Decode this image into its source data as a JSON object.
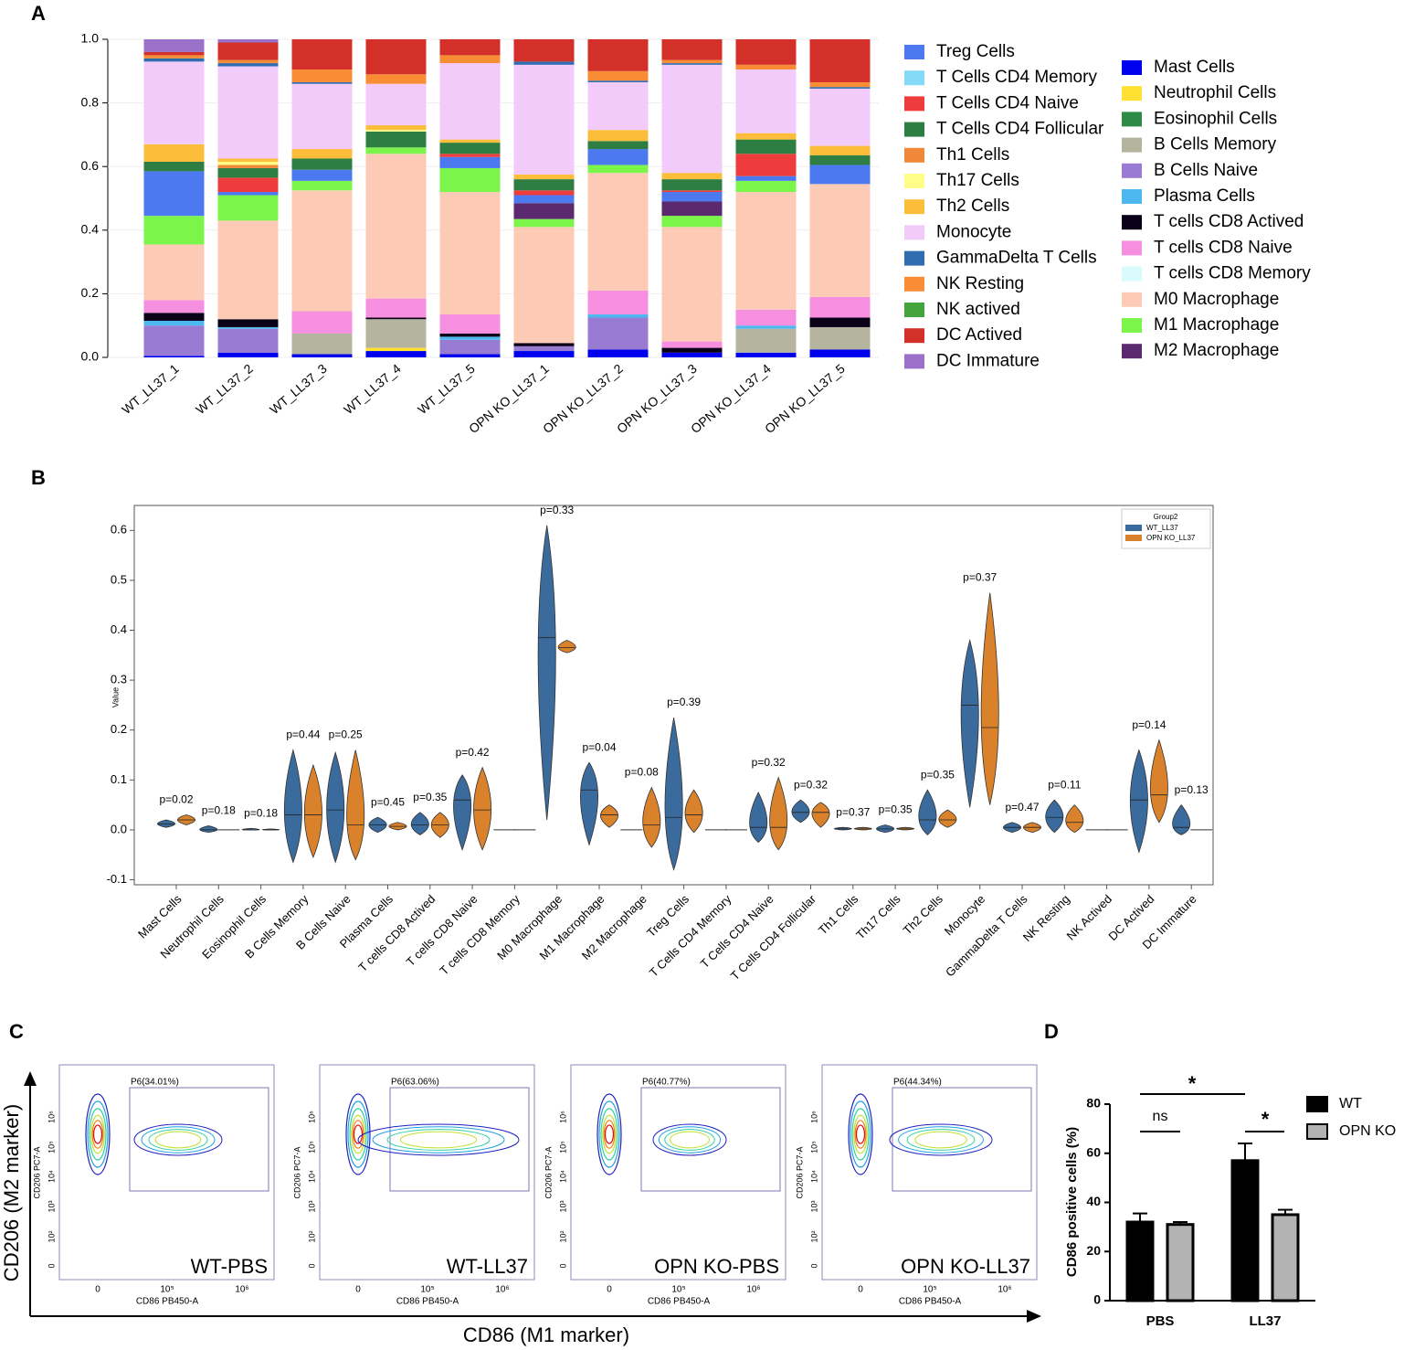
{
  "panel_labels": [
    "A",
    "B",
    "C",
    "D"
  ],
  "chart_data": [
    {
      "type": "stacked_bar",
      "categories": [
        "WT_LL37_1",
        "WT_LL37_2",
        "WT_LL37_3",
        "WT_LL37_4",
        "WT_LL37_5",
        "OPN KO_LL37_1",
        "OPN KO_LL37_2",
        "OPN KO_LL37_3",
        "OPN KO_LL37_4",
        "OPN KO_LL37_5"
      ],
      "series": [
        {
          "name": "Mast Cells",
          "color": "#0000ee",
          "values": [
            0.005,
            0.015,
            0.01,
            0.02,
            0.01,
            0.02,
            0.025,
            0.015,
            0.015,
            0.025
          ]
        },
        {
          "name": "Neutrophil Cells",
          "color": "#ffe033",
          "values": [
            0,
            0,
            0,
            0.01,
            0,
            0,
            0,
            0,
            0,
            0
          ]
        },
        {
          "name": "Eosinophil Cells",
          "color": "#2e8b47",
          "values": [
            0,
            0,
            0,
            0,
            0,
            0,
            0,
            0,
            0,
            0
          ]
        },
        {
          "name": "B Cells Memory",
          "color": "#b5b59f",
          "values": [
            0,
            0,
            0.065,
            0.09,
            0,
            0,
            0,
            0,
            0.075,
            0.07
          ]
        },
        {
          "name": "B Cells Naive",
          "color": "#9a7bd4",
          "values": [
            0.095,
            0.075,
            0,
            0,
            0.045,
            0.015,
            0.1,
            0,
            0,
            0
          ]
        },
        {
          "name": "Plasma Cells",
          "color": "#4db8f0",
          "values": [
            0.015,
            0.005,
            0,
            0,
            0.01,
            0,
            0.01,
            0,
            0.01,
            0
          ]
        },
        {
          "name": "T cells CD8 Actived",
          "color": "#0a0018",
          "values": [
            0.025,
            0.025,
            0,
            0.005,
            0.01,
            0.01,
            0,
            0.015,
            0,
            0.03
          ]
        },
        {
          "name": "T cells CD8 Naive",
          "color": "#f78fe0",
          "values": [
            0.04,
            0,
            0.07,
            0.06,
            0.06,
            0,
            0.075,
            0.02,
            0.05,
            0.065
          ]
        },
        {
          "name": "T cells CD8 Memory",
          "color": "#d9fbfb",
          "values": [
            0,
            0,
            0,
            0,
            0,
            0,
            0,
            0,
            0,
            0
          ]
        },
        {
          "name": "M0 Macrophage",
          "color": "#fdcab6",
          "values": [
            0.175,
            0.31,
            0.38,
            0.455,
            0.385,
            0.365,
            0.37,
            0.36,
            0.37,
            0.355
          ]
        },
        {
          "name": "M1 Macrophage",
          "color": "#7cf54a",
          "values": [
            0.09,
            0.08,
            0.03,
            0.02,
            0.075,
            0.025,
            0.025,
            0.035,
            0.035,
            0
          ]
        },
        {
          "name": "M2 Macrophage",
          "color": "#5b2a6e",
          "values": [
            0,
            0,
            0,
            0,
            0,
            0.05,
            0,
            0.045,
            0,
            0
          ]
        },
        {
          "name": "Treg Cells",
          "color": "#4c79f0",
          "values": [
            0.14,
            0.01,
            0.035,
            0,
            0.035,
            0.025,
            0.05,
            0.03,
            0.015,
            0.06
          ]
        },
        {
          "name": "T Cells CD4 Memory",
          "color": "#84d8f8",
          "values": [
            0,
            0,
            0,
            0,
            0,
            0,
            0,
            0,
            0,
            0
          ]
        },
        {
          "name": "T Cells CD4 Naive",
          "color": "#ee3b3b",
          "values": [
            0,
            0.045,
            0,
            0,
            0.01,
            0.015,
            0,
            0.005,
            0.07,
            0
          ]
        },
        {
          "name": "T Cells CD4 Follicular",
          "color": "#2e7d43",
          "values": [
            0.03,
            0.03,
            0.035,
            0.05,
            0.035,
            0.035,
            0.025,
            0.035,
            0.045,
            0.03
          ]
        },
        {
          "name": "Th1 Cells",
          "color": "#f0883a",
          "values": [
            0,
            0.01,
            0,
            0,
            0,
            0,
            0,
            0,
            0,
            0
          ]
        },
        {
          "name": "Th17 Cells",
          "color": "#fdfd88",
          "values": [
            0,
            0.01,
            0,
            0.005,
            0,
            0,
            0,
            0,
            0,
            0
          ]
        },
        {
          "name": "Th2 Cells",
          "color": "#fbbd3a",
          "values": [
            0.055,
            0.01,
            0.03,
            0.015,
            0.01,
            0.015,
            0.035,
            0.02,
            0.02,
            0.03
          ]
        },
        {
          "name": "Monocyte",
          "color": "#f3cbfb",
          "values": [
            0.26,
            0.29,
            0.205,
            0.13,
            0.24,
            0.345,
            0.15,
            0.34,
            0.2,
            0.18
          ]
        },
        {
          "name": "GammaDelta T Cells",
          "color": "#2f6cb0",
          "values": [
            0.01,
            0.01,
            0.005,
            0,
            0,
            0.01,
            0.005,
            0.005,
            0,
            0.005
          ]
        },
        {
          "name": "NK Resting",
          "color": "#f98d35",
          "values": [
            0.01,
            0.01,
            0.04,
            0.03,
            0.025,
            0,
            0.03,
            0.01,
            0.015,
            0.015
          ]
        },
        {
          "name": "NK actived",
          "color": "#45a33b",
          "values": [
            0,
            0,
            0,
            0,
            0,
            0,
            0,
            0,
            0,
            0
          ]
        },
        {
          "name": "DC Actived",
          "color": "#d4302a",
          "values": [
            0.01,
            0.055,
            0.095,
            0.11,
            0.05,
            0.07,
            0.1,
            0.065,
            0.08,
            0.135
          ]
        },
        {
          "name": "DC Immature",
          "color": "#9a70c8",
          "values": [
            0.04,
            0.01,
            0,
            0,
            0,
            0,
            0,
            0,
            0,
            0
          ]
        }
      ],
      "ylim": [
        0,
        1
      ],
      "yticks": [
        {
          "value": 0,
          "label": "0.0"
        },
        0.2,
        0.4,
        0.6,
        0.8,
        {
          "value": 1,
          "label": "1.0"
        }
      ]
    },
    {
      "type": "violin",
      "categories": [
        "Mast Cells",
        "Neutrophil Cells",
        "Eosinophil Cells",
        "B Cells Memory",
        "B Cells Naive",
        "Plasma Cells",
        "T cells CD8 Actived",
        "T cells CD8 Naive",
        "T cells CD8 Memory",
        "M0 Macrophage",
        "M1 Macrophage",
        "M2 Macrophage",
        "Treg Cells",
        "T Cells CD4 Memory",
        "T Cells CD4 Naive",
        "T Cells CD4 Follicular",
        "Th1 Cells",
        "Th17 Cells",
        "Th2 Cells",
        "Monocyte",
        "GammaDelta T Cells",
        "NK Resting",
        "NK Actived",
        "DC Actived",
        "DC Immature"
      ],
      "series": [
        {
          "name": "WT_LL37",
          "color": "#3a6b9c",
          "min": [
            0.005,
            -0.005,
            0,
            -0.065,
            -0.065,
            -0.005,
            -0.01,
            -0.04,
            0,
            0.02,
            -0.03,
            0,
            -0.08,
            0,
            -0.025,
            0.015,
            0,
            -0.005,
            -0.01,
            0.045,
            -0.005,
            -0.005,
            0,
            -0.045,
            -0.01
          ],
          "median": [
            0.012,
            0,
            0,
            0.03,
            0.04,
            0.01,
            0.01,
            0.06,
            0,
            0.385,
            0.08,
            0,
            0.025,
            0,
            0.005,
            0.035,
            0.002,
            0.002,
            0.02,
            0.25,
            0.005,
            0.025,
            0,
            0.06,
            0.005
          ],
          "max": [
            0.02,
            0.008,
            0.003,
            0.16,
            0.155,
            0.025,
            0.035,
            0.11,
            0,
            0.61,
            0.135,
            0,
            0.225,
            0,
            0.075,
            0.06,
            0.005,
            0.01,
            0.08,
            0.38,
            0.015,
            0.06,
            0,
            0.16,
            0.05
          ]
        },
        {
          "name": "OPN KO_LL37",
          "color": "#d9822b",
          "min": [
            0.01,
            0,
            0,
            -0.055,
            -0.06,
            0,
            -0.015,
            -0.04,
            0,
            0.355,
            0.005,
            -0.035,
            -0.005,
            0,
            -0.04,
            0.005,
            0,
            0,
            0.005,
            0.05,
            -0.005,
            -0.005,
            0,
            0.015,
            0
          ],
          "median": [
            0.02,
            0,
            0,
            0.03,
            0.01,
            0.007,
            0.01,
            0.04,
            0,
            0.365,
            0.03,
            0.01,
            0.03,
            0,
            0.005,
            0.035,
            0.002,
            0.002,
            0.02,
            0.205,
            0.005,
            0.015,
            0,
            0.07,
            0
          ],
          "max": [
            0.03,
            0,
            0.002,
            0.13,
            0.16,
            0.015,
            0.035,
            0.125,
            0,
            0.38,
            0.05,
            0.085,
            0.08,
            0,
            0.105,
            0.055,
            0.005,
            0.005,
            0.04,
            0.475,
            0.015,
            0.05,
            0,
            0.18,
            0
          ]
        }
      ],
      "p_labels": [
        "p=0.02",
        "p=0.18",
        "p=0.18",
        "p=0.44",
        "p=0.25",
        "p=0.45",
        "p=0.35",
        "p=0.42",
        null,
        "p=0.33",
        "p=0.04",
        "p=0.08",
        "p=0.39",
        null,
        "p=0.32",
        "p=0.32",
        "p=0.37",
        "p=0.35",
        "p=0.35",
        "p=0.37",
        "p=0.47",
        "p=0.11",
        null,
        "p=0.14",
        "p=0.13"
      ],
      "ylabel": "Value",
      "legend_title": "Group2",
      "legend": "upper right",
      "ylim": [
        -0.11,
        0.65
      ],
      "yticks": [
        -0.1,
        {
          "value": 0,
          "label": "0.0"
        },
        0.1,
        0.2,
        0.3,
        0.4,
        0.5,
        0.6
      ]
    },
    {
      "type": "bar",
      "categories": [
        "PBS",
        "LL37"
      ],
      "series": [
        {
          "name": "WT",
          "color": "#000000",
          "values": [
            32,
            57
          ],
          "errors": [
            3.5,
            7
          ]
        },
        {
          "name": "OPN KO",
          "color": "#b3b3b3",
          "values": [
            31,
            35
          ],
          "errors": [
            1,
            2
          ]
        }
      ],
      "ylabel": "CD86 positive cells (%)",
      "ylim": [
        0,
        80
      ],
      "yticks": [
        0,
        20,
        40,
        60,
        80
      ],
      "annotations": [
        "*",
        "ns",
        "*"
      ]
    }
  ],
  "flow": {
    "panels": [
      {
        "gate": "P6(34.01%)",
        "sample": "WT-PBS"
      },
      {
        "gate": "P6(63.06%)",
        "sample": "WT-LL37"
      },
      {
        "gate": "P6(40.77%)",
        "sample": "OPN KO-PBS"
      },
      {
        "gate": "P6(44.34%)",
        "sample": "OPN KO-LL37"
      }
    ],
    "ylabel": "CD206 PC7-A",
    "xlabel": "CD86 PB450-A",
    "xticks": [
      "0",
      "10⁵",
      "10⁶"
    ],
    "yticks": [
      "0",
      "10²",
      "10³",
      "10⁴",
      "10⁵",
      "10⁶"
    ],
    "y_axis_label": "CD206 (M2 marker)",
    "x_axis_label": "CD86 (M1 marker)"
  }
}
